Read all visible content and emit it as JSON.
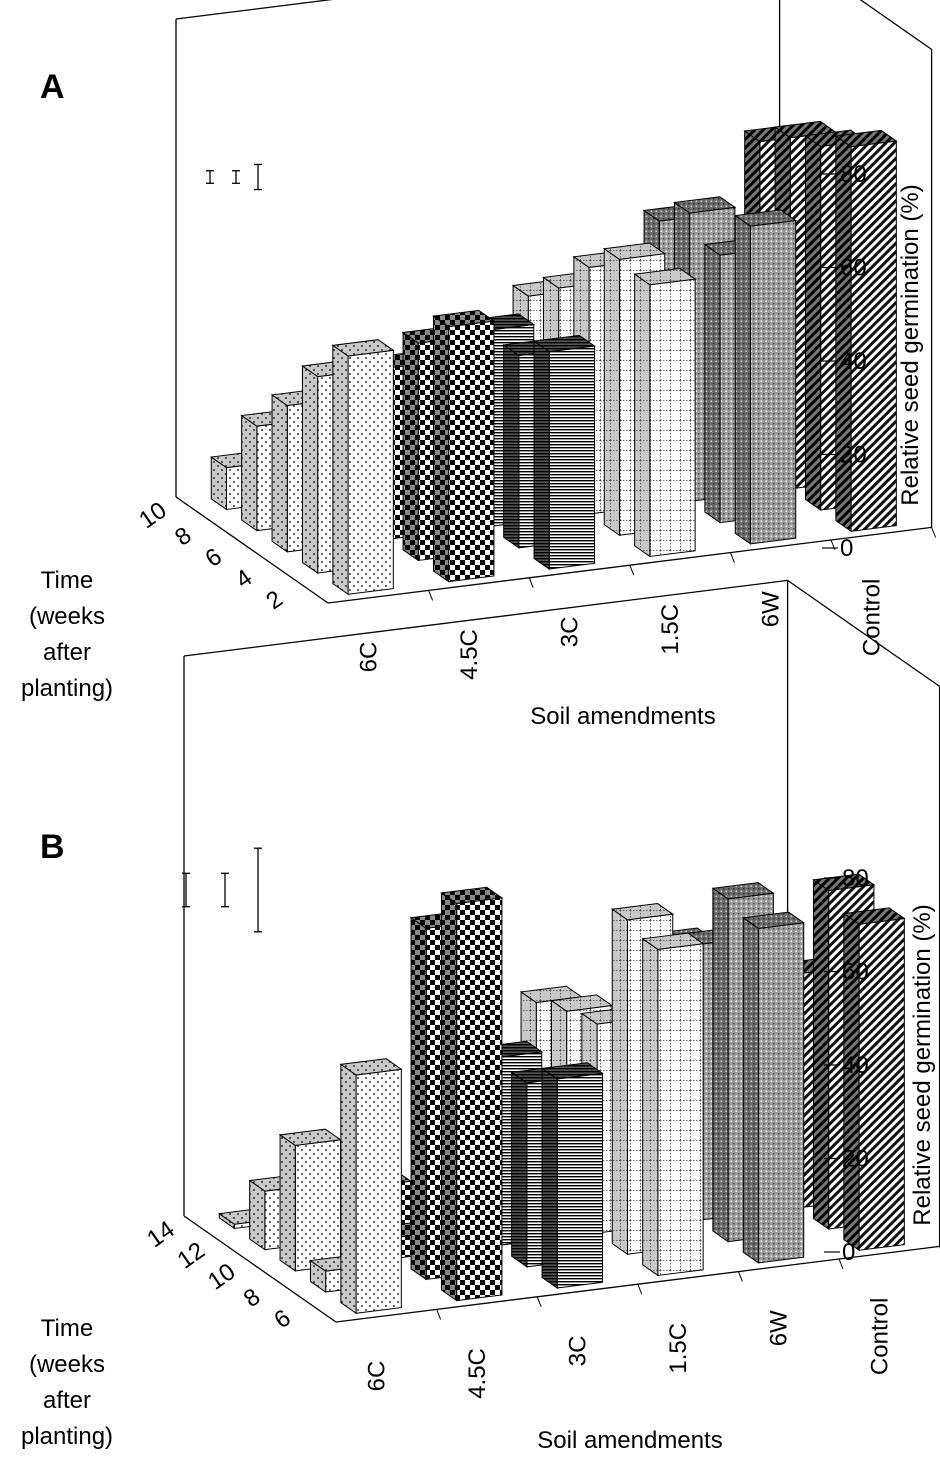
{
  "chart_data": [
    {
      "type": "bar3d",
      "panel_label": "A",
      "xlabel": "Soil amendments",
      "categories": [
        "6C",
        "4.5C",
        "3C",
        "1.5C",
        "6W",
        "Control"
      ],
      "ylabel_lines": [
        "Time",
        "(weeks",
        "after",
        "planting)"
      ],
      "time_labels": [
        "2",
        "4",
        "6",
        "8",
        "10"
      ],
      "zlabel": "Relative seed germination (%)",
      "zlim": [
        0,
        90
      ],
      "zticks": [
        0,
        20,
        40,
        60,
        80
      ],
      "error_bars": [
        3,
        3,
        6
      ],
      "values": [
        [
          57,
          61,
          52,
          65,
          76,
          92
        ],
        [
          47,
          52,
          46,
          66,
          64,
          87
        ],
        [
          35,
          41,
          47,
          59,
          69,
          84
        ],
        [
          25,
          36,
          33,
          49,
          62,
          78
        ],
        [
          10,
          24,
          20,
          42,
          48,
          0
        ]
      ]
    },
    {
      "type": "bar3d",
      "panel_label": "B",
      "xlabel": "Soil amendments",
      "categories": [
        "6C",
        "4.5C",
        "3C",
        "1.5C",
        "6W",
        "Control"
      ],
      "ylabel_lines": [
        "Time",
        "(weeks",
        "after",
        "planting)"
      ],
      "time_labels": [
        "6",
        "8",
        "10",
        "12",
        "14"
      ],
      "zlabel": "Relative seed germination (%)",
      "zlim": [
        0,
        90
      ],
      "zticks": [
        0,
        20,
        40,
        60,
        80
      ],
      "error_bars": [
        8,
        8,
        20
      ],
      "values": [
        [
          57,
          95,
          50,
          78,
          80,
          78
        ],
        [
          5,
          84,
          44,
          80,
          82,
          81
        ],
        [
          30,
          5,
          45,
          50,
          66,
          56
        ],
        [
          14,
          12,
          21,
          48,
          61,
          50
        ],
        [
          1,
          3,
          20,
          45,
          30,
          0
        ]
      ]
    }
  ]
}
